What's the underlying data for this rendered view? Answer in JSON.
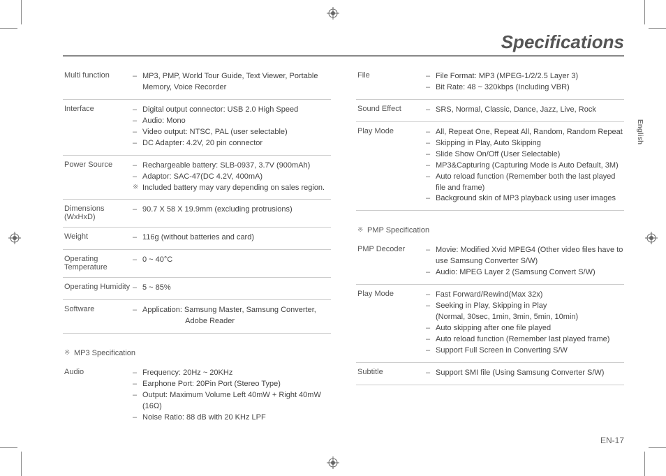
{
  "title": "Specifications",
  "language_tab": "English",
  "page_number": "EN-17",
  "left": {
    "rows": [
      {
        "label": "Multi function",
        "items": [
          {
            "m": "–",
            "t": "MP3, PMP, World Tour Guide, Text Viewer, Portable"
          },
          {
            "m": "",
            "t": "Memory, Voice Recorder",
            "indent": true
          }
        ]
      },
      {
        "label": "Interface",
        "items": [
          {
            "m": "–",
            "t": "Digital output connector: USB 2.0 High Speed"
          },
          {
            "m": "–",
            "t": "Audio: Mono"
          },
          {
            "m": "–",
            "t": "Video output: NTSC, PAL (user selectable)"
          },
          {
            "m": "–",
            "t": "DC Adapter: 4.2V, 20 pin connector"
          }
        ]
      },
      {
        "label": "Power Source",
        "items": [
          {
            "m": "–",
            "t": "Rechargeable battery: SLB-0937, 3.7V (900mAh)"
          },
          {
            "m": "–",
            "t": "Adaptor: SAC-47(DC 4.2V, 400mA)"
          },
          {
            "m": "※",
            "t": "Included battery may vary depending on sales region."
          }
        ]
      },
      {
        "label": "Dimensions\n    (WxHxD)",
        "items": [
          {
            "m": "–",
            "t": "90.7 X 58 X 19.9mm (excluding protrusions)"
          }
        ]
      },
      {
        "label": "Weight",
        "items": [
          {
            "m": "–",
            "t": "116g (without batteries and card)"
          }
        ]
      },
      {
        "label": "Operating Temperature",
        "items": [
          {
            "m": "–",
            "t": "0 ~ 40°C"
          }
        ]
      },
      {
        "label": "Operating Humidity",
        "items": [
          {
            "m": "–",
            "t": "5 ~ 85%"
          }
        ]
      },
      {
        "label": "Software",
        "items": [
          {
            "m": "–",
            "t": "Application: Samsung Master, Samsung Converter,"
          },
          {
            "m": "",
            "t": "                    Adobe Reader",
            "indent": true
          }
        ]
      }
    ],
    "section": "MP3 Specification",
    "section_rows": [
      {
        "label": "Audio",
        "items": [
          {
            "m": "–",
            "t": "Frequency: 20Hz ~ 20KHz"
          },
          {
            "m": "–",
            "t": "Earphone Port: 20Pin Port (Stereo Type)"
          },
          {
            "m": "–",
            "t": "Output: Maximum Volume Left 40mW + Right 40mW (16Ω)"
          },
          {
            "m": "–",
            "t": "Noise Ratio: 88 dB with 20 KHz LPF"
          }
        ],
        "noborder": true
      }
    ]
  },
  "right": {
    "rows": [
      {
        "label": "File",
        "items": [
          {
            "m": "–",
            "t": "File Format: MP3 (MPEG-1/2/2.5 Layer 3)"
          },
          {
            "m": "–",
            "t": "Bit Rate: 48 ~ 320kbps (Including VBR)"
          }
        ]
      },
      {
        "label": "Sound Effect",
        "items": [
          {
            "m": "–",
            "t": "SRS, Normal, Classic, Dance, Jazz, Live, Rock"
          }
        ]
      },
      {
        "label": "Play Mode",
        "items": [
          {
            "m": "–",
            "t": "All, Repeat One, Repeat All, Random, Random Repeat"
          },
          {
            "m": "–",
            "t": "Skipping in Play, Auto Skipping"
          },
          {
            "m": "–",
            "t": "Slide Show On/Off (User Selectable)"
          },
          {
            "m": "–",
            "t": "MP3&Capturing (Capturing Mode is Auto Default, 3M)"
          },
          {
            "m": "–",
            "t": "Auto reload function (Remember both the last played file and frame)"
          },
          {
            "m": "–",
            "t": "Background skin of MP3 playback using user images"
          }
        ]
      }
    ],
    "section": "PMP Specification",
    "section_rows": [
      {
        "label": "PMP Decoder",
        "items": [
          {
            "m": "–",
            "t": "Movie: Modified Xvid MPEG4 (Other video files have to use Samsung Converter S/W)"
          },
          {
            "m": "–",
            "t": "Audio: MPEG Layer 2 (Samsung Convert S/W)"
          }
        ]
      },
      {
        "label": "Play Mode",
        "items": [
          {
            "m": "–",
            "t": "Fast Forward/Rewind(Max 32x)"
          },
          {
            "m": "–",
            "t": "Seeking in Play, Skipping in Play"
          },
          {
            "m": "",
            "t": "(Normal, 30sec, 1min, 3min, 5min, 10min)",
            "indent": true
          },
          {
            "m": "–",
            "t": "Auto skipping after one file played"
          },
          {
            "m": "–",
            "t": "Auto reload function (Remember last played frame)"
          },
          {
            "m": "–",
            "t": "Support Full Screen in Converting S/W"
          }
        ]
      },
      {
        "label": "Subtitle",
        "items": [
          {
            "m": "–",
            "t": "Support SMI file (Using Samsung Converter S/W)"
          }
        ]
      }
    ]
  }
}
